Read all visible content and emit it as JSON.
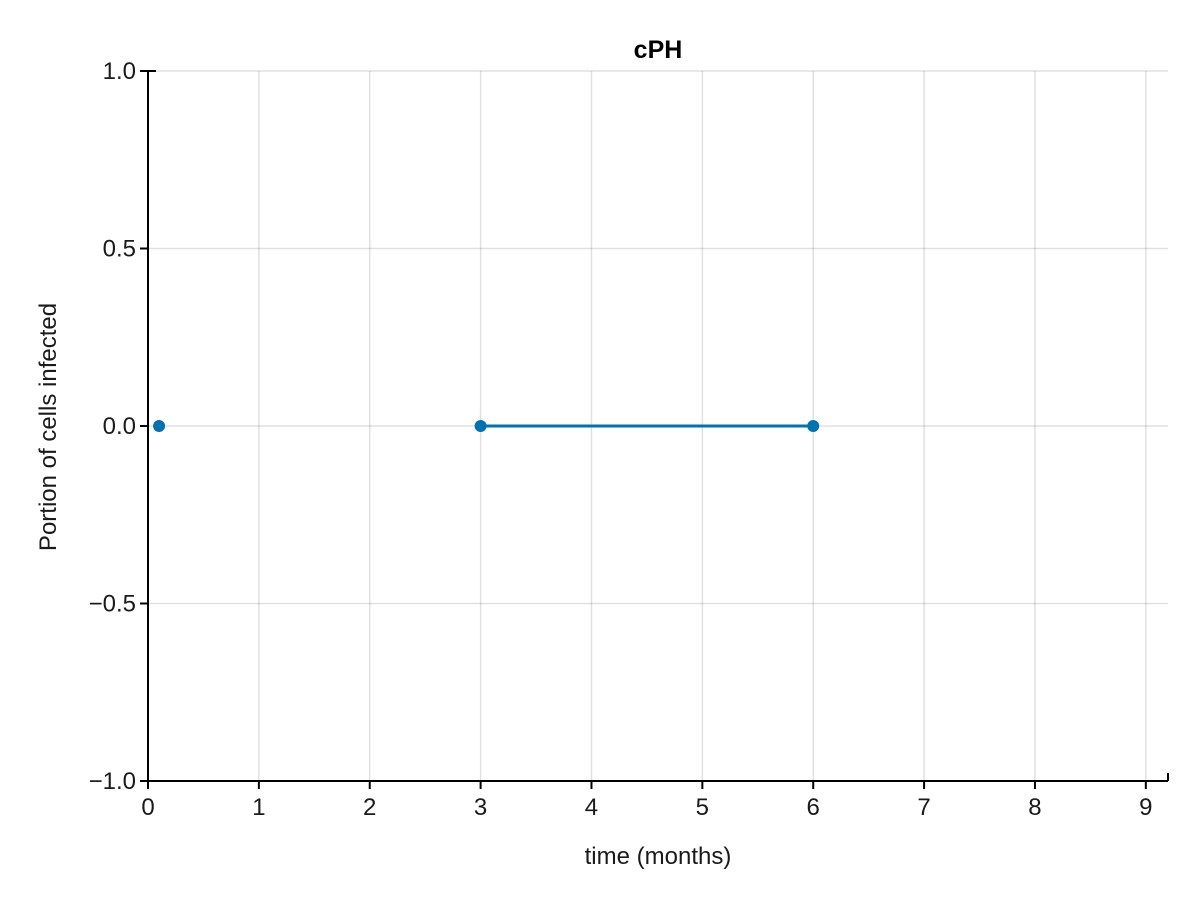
{
  "chart_data": {
    "type": "line",
    "title": "cPH",
    "xlabel": "time (months)",
    "ylabel": "Portion of cells infected",
    "xlim": [
      0,
      9.2
    ],
    "ylim": [
      -1.0,
      1.0
    ],
    "xticks": [
      0,
      1,
      2,
      3,
      4,
      5,
      6,
      7,
      8,
      9
    ],
    "xtick_labels": [
      "0",
      "1",
      "2",
      "3",
      "4",
      "5",
      "6",
      "7",
      "8",
      "9"
    ],
    "yticks": [
      -1.0,
      -0.5,
      0.0,
      0.5,
      1.0
    ],
    "ytick_labels": [
      "−1.0",
      "−0.5",
      "0.0",
      "0.5",
      "1.0"
    ],
    "grid": true,
    "series": [
      {
        "color": "#0072b2",
        "x": [
          0.1,
          3,
          6
        ],
        "y": [
          0.0,
          0.0,
          0.0
        ],
        "segments": [
          [
            0
          ],
          [
            1,
            2
          ]
        ]
      }
    ]
  }
}
